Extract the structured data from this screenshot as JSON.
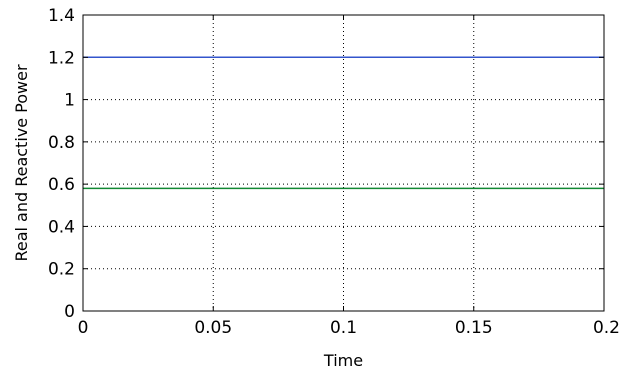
{
  "chart_data": {
    "type": "line",
    "title": "",
    "xlabel": "Time",
    "ylabel": "Real and Reactive Power",
    "xlim": [
      0,
      0.2
    ],
    "ylim": [
      0,
      1.4
    ],
    "xticks": [
      0,
      0.05,
      0.1,
      0.15,
      0.2
    ],
    "xtick_labels": [
      "0",
      "0.05",
      "0.1",
      "0.15",
      "0.2"
    ],
    "yticks": [
      0,
      0.2,
      0.4,
      0.6,
      0.8,
      1,
      1.2,
      1.4
    ],
    "ytick_labels": [
      "0",
      "0.2",
      "0.4",
      "0.6",
      "0.8",
      "1",
      "1.2",
      "1.4"
    ],
    "grid": true,
    "series": [
      {
        "color": "#3355cc",
        "x": [
          0,
          0.2
        ],
        "y": [
          1.2,
          1.2
        ]
      },
      {
        "color": "#118833",
        "x": [
          0,
          0.2
        ],
        "y": [
          0.58,
          0.58
        ]
      }
    ]
  }
}
